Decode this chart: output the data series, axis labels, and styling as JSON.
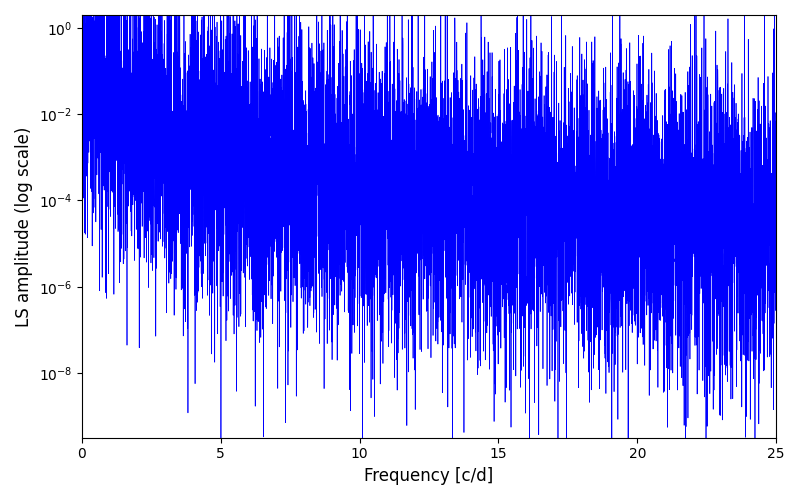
{
  "xlabel": "Frequency [c/d]",
  "ylabel": "LS amplitude (log scale)",
  "line_color": "#0000ff",
  "xlim": [
    0,
    25
  ],
  "ylim_log_min": -9.5,
  "ylim_log_max": 0.3,
  "yticks": [
    1e-08,
    1e-06,
    0.0001,
    0.01,
    1.0
  ],
  "xticks": [
    0,
    5,
    10,
    15,
    20,
    25
  ],
  "figsize": [
    8.0,
    5.0
  ],
  "dpi": 100,
  "seed": 12345,
  "n_points": 8000,
  "freq_max": 25.0,
  "background": "#ffffff",
  "linewidth": 0.5
}
